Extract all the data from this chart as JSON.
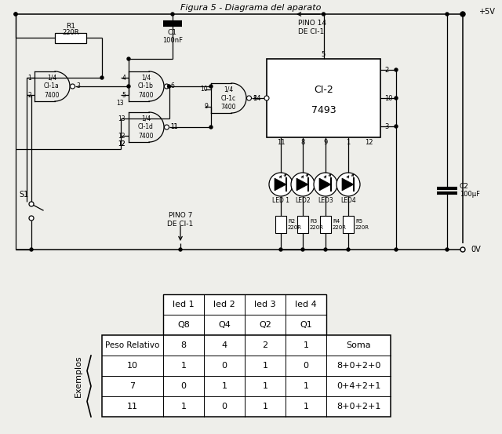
{
  "title": "Figura 5 - Diagrama del aparato",
  "bg_color": "#eeeeea",
  "table_header_row1": [
    "led 1",
    "led 2",
    "led 3",
    "led 4"
  ],
  "table_header_row2": [
    "Q8",
    "Q4",
    "Q2",
    "Q1"
  ],
  "table_col0_header": "Peso Relativo",
  "table_weights": [
    "8",
    "4",
    "2",
    "1"
  ],
  "table_soma_header": "Soma",
  "table_examples_label": "Exemplos",
  "table_rows": [
    [
      "10",
      "1",
      "0",
      "1",
      "0",
      "8+0+2+0"
    ],
    [
      "7",
      "0",
      "1",
      "1",
      "1",
      "0+4+2+1"
    ],
    [
      "11",
      "1",
      "0",
      "1",
      "1",
      "8+0+2+1"
    ]
  ],
  "led_labels": [
    "LED 1",
    "LED2",
    "LED3",
    "LED4"
  ],
  "resistor_labels": [
    "R2\n220R",
    "R3\n220R",
    "R4\n220R",
    "R5\n220R"
  ]
}
